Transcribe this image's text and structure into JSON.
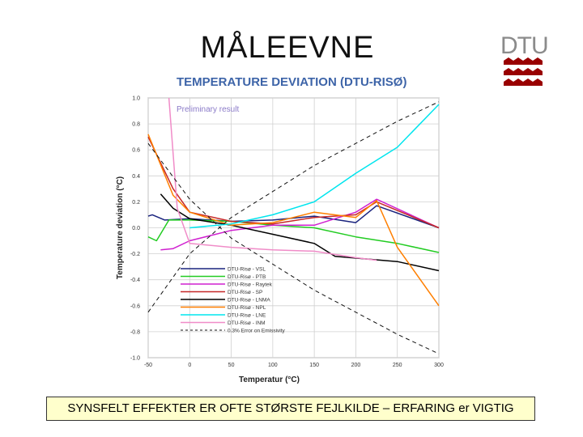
{
  "slide": {
    "title": "MÅLEEVNE",
    "logo_text": "DTU",
    "banner": "SYNSFELT EFFEKTER ER OFTE STØRSTE FEJLKILDE – ERFARING er VIGTIG"
  },
  "colors": {
    "logo_red": "#990000",
    "banner_bg": "#ffffcc"
  },
  "chart_data": {
    "type": "line",
    "title": "TEMPERATURE DEVIATION (DTU-RISØ)",
    "annotation": "Preliminary result",
    "xlabel": "Temperatur (°C)",
    "ylabel": "Temperature deviation (°C)",
    "xlim": [
      -50,
      300
    ],
    "ylim": [
      -1.0,
      1.0
    ],
    "x_ticks": [
      "-50",
      "0",
      "50",
      "100",
      "150",
      "200",
      "250",
      "300"
    ],
    "y_ticks": [
      "1.0",
      "0.8",
      "0.6",
      "0.4",
      "0.2",
      "0.0",
      "-0.2",
      "-0.4",
      "-0.6",
      "-0.8",
      "-1.0"
    ],
    "legend_position": "bottom-left",
    "grid": true,
    "series": [
      {
        "name": "DTU-Risø - VSL",
        "color": "#1a237e",
        "dash": "",
        "points": [
          [
            -50,
            0.09
          ],
          [
            -45,
            0.1
          ],
          [
            -30,
            0.06
          ],
          [
            0,
            0.07
          ],
          [
            50,
            0.05
          ],
          [
            100,
            0.06
          ],
          [
            150,
            0.09
          ],
          [
            200,
            0.04
          ],
          [
            225,
            0.17
          ],
          [
            300,
            0.0
          ]
        ]
      },
      {
        "name": "DTU-Risø - PTB",
        "color": "#22cc22",
        "dash": "",
        "points": [
          [
            -50,
            -0.07
          ],
          [
            -40,
            -0.1
          ],
          [
            -25,
            0.06
          ],
          [
            0,
            0.06
          ],
          [
            50,
            0.05
          ],
          [
            100,
            0.02
          ],
          [
            150,
            0.0
          ],
          [
            200,
            -0.07
          ],
          [
            250,
            -0.12
          ],
          [
            300,
            -0.19
          ]
        ]
      },
      {
        "name": "DTU-Risø - Raytek",
        "color": "#d020d0",
        "dash": "",
        "points": [
          [
            -35,
            -0.17
          ],
          [
            -20,
            -0.16
          ],
          [
            0,
            -0.1
          ],
          [
            50,
            -0.02
          ],
          [
            100,
            0.02
          ],
          [
            150,
            0.02
          ],
          [
            200,
            0.12
          ],
          [
            225,
            0.22
          ],
          [
            300,
            0.0
          ]
        ]
      },
      {
        "name": "DTU-Risø - SP",
        "color": "#c62828",
        "dash": "",
        "points": [
          [
            -50,
            0.7
          ],
          [
            -20,
            0.3
          ],
          [
            0,
            0.12
          ],
          [
            50,
            0.05
          ],
          [
            100,
            0.03
          ],
          [
            150,
            0.08
          ],
          [
            200,
            0.1
          ],
          [
            225,
            0.2
          ],
          [
            300,
            0.0
          ]
        ]
      },
      {
        "name": "DTU-Risø - LNMA",
        "color": "#000000",
        "dash": "",
        "points": [
          [
            -35,
            0.26
          ],
          [
            -20,
            0.15
          ],
          [
            0,
            0.07
          ],
          [
            50,
            0.02
          ],
          [
            100,
            -0.05
          ],
          [
            150,
            -0.12
          ],
          [
            175,
            -0.22
          ],
          [
            250,
            -0.26
          ],
          [
            300,
            -0.33
          ]
        ]
      },
      {
        "name": "DTU-Risø - NPL",
        "color": "#ff7f00",
        "dash": "",
        "points": [
          [
            -50,
            0.72
          ],
          [
            -20,
            0.25
          ],
          [
            0,
            0.12
          ],
          [
            50,
            0.02
          ],
          [
            100,
            0.04
          ],
          [
            150,
            0.12
          ],
          [
            200,
            0.08
          ],
          [
            225,
            0.21
          ],
          [
            250,
            -0.15
          ],
          [
            300,
            -0.6
          ]
        ]
      },
      {
        "name": "DTU-Risø - LNE",
        "color": "#00e5ee",
        "dash": "",
        "points": [
          [
            0,
            0.0
          ],
          [
            50,
            0.03
          ],
          [
            100,
            0.1
          ],
          [
            150,
            0.2
          ],
          [
            200,
            0.42
          ],
          [
            250,
            0.62
          ],
          [
            300,
            0.95
          ]
        ]
      },
      {
        "name": "DTU-Risø - INM",
        "color": "#f08cc8",
        "dash": "",
        "points": [
          [
            -25,
            1.0
          ],
          [
            -15,
            0.15
          ],
          [
            0,
            -0.12
          ],
          [
            50,
            -0.15
          ],
          [
            100,
            -0.17
          ],
          [
            150,
            -0.18
          ],
          [
            200,
            -0.23
          ],
          [
            225,
            -0.25
          ]
        ]
      },
      {
        "name": "0.3% Error on Emissivity",
        "color": "#111111",
        "dash": "5,4",
        "points": [
          [
            -50,
            -0.65
          ],
          [
            0,
            -0.2
          ],
          [
            50,
            0.08
          ],
          [
            100,
            0.28
          ],
          [
            150,
            0.48
          ],
          [
            200,
            0.65
          ],
          [
            250,
            0.82
          ],
          [
            300,
            0.97
          ]
        ]
      },
      {
        "name": "",
        "color": "#111111",
        "dash": "5,4",
        "points": [
          [
            -50,
            0.65
          ],
          [
            0,
            0.22
          ],
          [
            50,
            -0.08
          ],
          [
            100,
            -0.28
          ],
          [
            150,
            -0.48
          ],
          [
            200,
            -0.65
          ],
          [
            250,
            -0.82
          ],
          [
            300,
            -0.97
          ]
        ]
      }
    ]
  }
}
